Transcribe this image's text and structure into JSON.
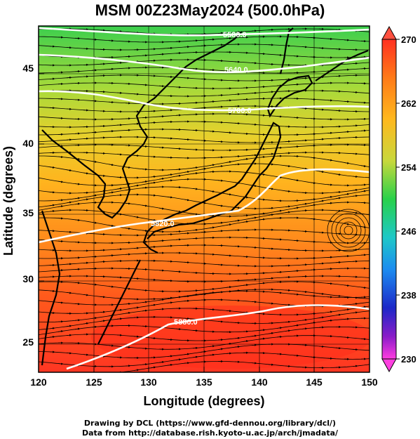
{
  "title": "MSM 00Z23May2024 (500.0hPa)",
  "x_axis": {
    "label": "Longitude (degrees)",
    "ticks": [
      "120",
      "125",
      "130",
      "135",
      "140",
      "145",
      "150"
    ]
  },
  "y_axis": {
    "label": "Latitude  (degrees)",
    "ticks": [
      "25",
      "30",
      "35",
      "40",
      "45"
    ]
  },
  "colorbar": {
    "ticks": [
      "270",
      "262",
      "254",
      "246",
      "238",
      "230"
    ],
    "colors": [
      "#ff3020",
      "#ff7a18",
      "#ffb81e",
      "#c8d83c",
      "#28d14a",
      "#1ec8c8",
      "#1c8cf0",
      "#1c28c8",
      "#8a1cc8",
      "#ff3ce0"
    ]
  },
  "contours": [
    {
      "label": "5580.0"
    },
    {
      "label": "5640.0"
    },
    {
      "label": "5700.0"
    },
    {
      "label": "5820.0"
    },
    {
      "label": "5880.0"
    }
  ],
  "credits": {
    "line1": "Drawing by DCL (https://www.gfd-dennou.org/library/dcl/)",
    "line2": "Data from http://database.rish.kyoto-u.ac.jp/arch/jmadata/"
  },
  "map_extent": {
    "lon": [
      120,
      150
    ],
    "lat": [
      22.5,
      47.5
    ]
  }
}
